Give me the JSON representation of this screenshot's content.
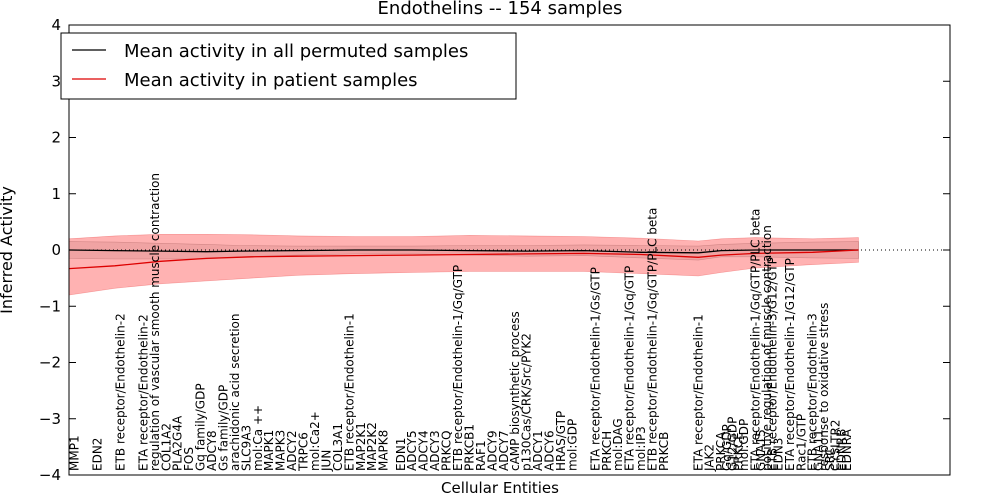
{
  "chart_data": {
    "type": "line",
    "title": "Endothelins -- 154 samples",
    "xlabel": "Cellular Entities",
    "ylabel": "Inferred Activity",
    "ylim": [
      -4,
      4
    ],
    "xlim": [
      0,
      154
    ],
    "yticks": [
      -4,
      -3,
      -2,
      -1,
      0,
      1,
      2,
      3,
      4
    ],
    "grid": false,
    "reference_line": 0,
    "legend": {
      "placement": "top-left",
      "entries": [
        {
          "name": "Mean activity in all permuted samples",
          "color": "#000000"
        },
        {
          "name": "Mean activity in patient samples",
          "color": "#dd0000"
        }
      ]
    },
    "x_labels": [
      {
        "x": 1,
        "label": "MMP1"
      },
      {
        "x": 5,
        "label": "EDN2"
      },
      {
        "x": 9,
        "label": "ETB receptor/Endothelin-2"
      },
      {
        "x": 13,
        "label": "ETA receptor/Endothelin-2"
      },
      {
        "x": 15,
        "label": "regulation of vascular smooth muscle contraction"
      },
      {
        "x": 17,
        "label": "COL1A2"
      },
      {
        "x": 19,
        "label": "PLA2G4A"
      },
      {
        "x": 21,
        "label": "FOS"
      },
      {
        "x": 23,
        "label": "Gq family/GDP"
      },
      {
        "x": 25,
        "label": "ADCY8"
      },
      {
        "x": 27,
        "label": "Gs family/GDP"
      },
      {
        "x": 29,
        "label": "arachidonic acid secretion"
      },
      {
        "x": 31,
        "label": "SLC9A3"
      },
      {
        "x": 33,
        "label": "mol:Ca ++"
      },
      {
        "x": 35,
        "label": "MAPK1"
      },
      {
        "x": 37,
        "label": "MAPK3"
      },
      {
        "x": 39,
        "label": "ADCY2"
      },
      {
        "x": 41,
        "label": "TRPC6"
      },
      {
        "x": 43,
        "label": "mol:Ca2+"
      },
      {
        "x": 45,
        "label": "JUN"
      },
      {
        "x": 47,
        "label": "COL3A1"
      },
      {
        "x": 49,
        "label": "ETB receptor/Endothelin-1"
      },
      {
        "x": 51,
        "label": "MAP2K1"
      },
      {
        "x": 53,
        "label": "MAP2K2"
      },
      {
        "x": 55,
        "label": "MAPK8"
      },
      {
        "x": 58,
        "label": "EDN1"
      },
      {
        "x": 60,
        "label": "ADCY5"
      },
      {
        "x": 62,
        "label": "ADCY4"
      },
      {
        "x": 64,
        "label": "ADCY3"
      },
      {
        "x": 66,
        "label": "PRKCQ"
      },
      {
        "x": 68,
        "label": "ETB receptor/Endothelin-1/Gq/GTP"
      },
      {
        "x": 70,
        "label": "PRKCB1"
      },
      {
        "x": 72,
        "label": "RAF1"
      },
      {
        "x": 74,
        "label": "ADCY9"
      },
      {
        "x": 76,
        "label": "ADCY7"
      },
      {
        "x": 78,
        "label": "cAMP biosynthetic process"
      },
      {
        "x": 80,
        "label": "p130Cas/CRK/Src/PYK2"
      },
      {
        "x": 82,
        "label": "ADCY1"
      },
      {
        "x": 84,
        "label": "ADCY6"
      },
      {
        "x": 86,
        "label": "HRAS/GTP"
      },
      {
        "x": 88,
        "label": "mol:GDP"
      },
      {
        "x": 92,
        "label": "ETA receptor/Endothelin-1/Gs/GTP"
      },
      {
        "x": 94,
        "label": "PRKCH"
      },
      {
        "x": 96,
        "label": "mol:DAG"
      },
      {
        "x": 98,
        "label": "ETA receptor/Endothelin-1/Gq/GTP"
      },
      {
        "x": 100,
        "label": "mol:IP3"
      },
      {
        "x": 102,
        "label": "ETB receptor/Endothelin-1/Gq/GTP/PLC beta"
      },
      {
        "x": 104,
        "label": "PRKCB"
      },
      {
        "x": 110,
        "label": "ETA receptor/Endothelin-1"
      },
      {
        "x": 112,
        "label": "JAK2"
      },
      {
        "x": 114,
        "label": "PRKCA"
      },
      {
        "x": 115,
        "label": "Gq/GDP"
      },
      {
        "x": 116,
        "label": "G12/GDP"
      },
      {
        "x": 117,
        "label": "PRKCE"
      },
      {
        "x": 118,
        "label": "mol:GDP"
      },
      {
        "x": 120,
        "label": "ETA receptor/Endothelin-1/Gq/GTP/PLC beta"
      },
      {
        "x": 121,
        "label": "GNA15"
      },
      {
        "x": 122,
        "label": "positive regulation of muscle contraction"
      },
      {
        "x": 123,
        "label": "ETB receptor/Endothelin-3/G12/GTP"
      },
      {
        "x": 124,
        "label": "EDN3"
      },
      {
        "x": 126,
        "label": "ETA receptor/Endothelin-1/G12/GTP"
      },
      {
        "x": 128,
        "label": "Rac1/GTP"
      },
      {
        "x": 130,
        "label": "ETB receptor/Endothelin-3"
      },
      {
        "x": 131,
        "label": "GNA11"
      },
      {
        "x": 132,
        "label": "response to oxidative stress"
      },
      {
        "x": 133,
        "label": "SRC"
      },
      {
        "x": 134,
        "label": "CYSLTR2"
      },
      {
        "x": 135,
        "label": "EDNRB"
      },
      {
        "x": 136,
        "label": "EDNRA"
      }
    ],
    "series": [
      {
        "name": "Mean activity in all permuted samples",
        "color": "#000000",
        "x": [
          0,
          8,
          16,
          24,
          30,
          40,
          50,
          60,
          70,
          80,
          90,
          100,
          110,
          114,
          120,
          130,
          138
        ],
        "values": [
          0,
          -0.01,
          -0.02,
          -0.03,
          -0.02,
          -0.01,
          0,
          0,
          -0.01,
          -0.02,
          -0.01,
          -0.04,
          -0.05,
          -0.01,
          0,
          0,
          0
        ],
        "band_upper": [
          0.15,
          0.14,
          0.12,
          0.1,
          0.08,
          0.07,
          0.07,
          0.07,
          0.08,
          0.08,
          0.09,
          0.08,
          0.07,
          0.1,
          0.12,
          0.14,
          0.15
        ],
        "band_lower": [
          -0.15,
          -0.16,
          -0.16,
          -0.16,
          -0.12,
          -0.09,
          -0.07,
          -0.07,
          -0.09,
          -0.11,
          -0.1,
          -0.14,
          -0.18,
          -0.12,
          -0.12,
          -0.14,
          -0.15
        ]
      },
      {
        "name": "Mean activity in patient samples",
        "color": "#dd0000",
        "x": [
          0,
          8,
          16,
          24,
          32,
          40,
          50,
          60,
          70,
          80,
          90,
          100,
          110,
          114,
          120,
          130,
          138
        ],
        "values": [
          -0.33,
          -0.28,
          -0.2,
          -0.15,
          -0.12,
          -0.11,
          -0.1,
          -0.09,
          -0.08,
          -0.07,
          -0.06,
          -0.08,
          -0.13,
          -0.09,
          -0.06,
          -0.04,
          0
        ],
        "band_upper": [
          0.2,
          0.25,
          0.28,
          0.28,
          0.27,
          0.25,
          0.24,
          0.24,
          0.26,
          0.25,
          0.24,
          0.21,
          0.16,
          0.2,
          0.22,
          0.2,
          0.22
        ],
        "band_lower": [
          -0.8,
          -0.68,
          -0.6,
          -0.55,
          -0.5,
          -0.45,
          -0.42,
          -0.4,
          -0.38,
          -0.38,
          -0.38,
          -0.42,
          -0.46,
          -0.4,
          -0.32,
          -0.26,
          -0.22
        ]
      }
    ]
  }
}
